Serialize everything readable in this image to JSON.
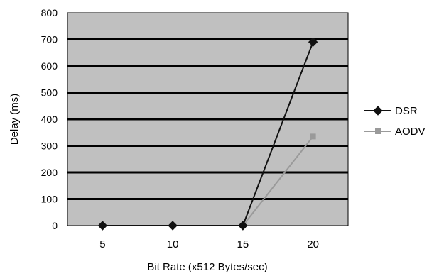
{
  "chart_data": {
    "type": "line",
    "title": "",
    "xlabel": "Bit Rate (x512 Bytes/sec)",
    "ylabel": "Delay (ms)",
    "categories": [
      "5",
      "10",
      "15",
      "20"
    ],
    "ylim": [
      0,
      800
    ],
    "yticks": [
      "0",
      "100",
      "200",
      "300",
      "400",
      "500",
      "600",
      "700",
      "800"
    ],
    "grid": true,
    "legend_position": "right",
    "plot_background": "#c0c0c0",
    "series": [
      {
        "name": "DSR",
        "values": [
          0,
          0,
          0,
          690
        ],
        "color": "#111111",
        "marker": "diamond"
      },
      {
        "name": "AODV",
        "values": [
          0,
          0,
          0,
          335
        ],
        "color": "#9a9a9a",
        "marker": "square"
      }
    ]
  }
}
